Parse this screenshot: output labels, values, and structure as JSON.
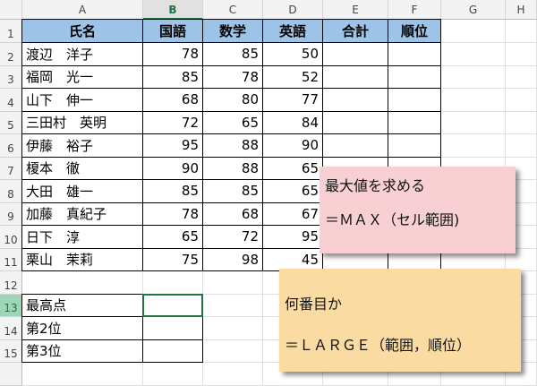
{
  "columns": [
    "A",
    "B",
    "C",
    "D",
    "E",
    "F",
    "G",
    "H"
  ],
  "selected_column": "B",
  "selected_row": "13",
  "selected_cell": "B13",
  "rows": [
    [
      "氏名",
      "国語",
      "数学",
      "英語",
      "合計",
      "順位"
    ],
    [
      "渡辺　洋子",
      "78",
      "85",
      "50",
      "",
      ""
    ],
    [
      "福岡　光一",
      "85",
      "78",
      "52",
      "",
      ""
    ],
    [
      "山下　伸一",
      "68",
      "80",
      "77",
      "",
      ""
    ],
    [
      "三田村　英明",
      "72",
      "65",
      "84",
      "",
      ""
    ],
    [
      "伊藤　裕子",
      "95",
      "88",
      "90",
      "",
      ""
    ],
    [
      "榎本　徹",
      "90",
      "88",
      "65",
      "",
      ""
    ],
    [
      "大田　雄一",
      "85",
      "85",
      "65",
      "",
      ""
    ],
    [
      "加藤　真紀子",
      "78",
      "68",
      "67",
      "",
      ""
    ],
    [
      "日下　淳",
      "65",
      "72",
      "95",
      "",
      ""
    ],
    [
      "栗山　茉莉",
      "75",
      "98",
      "45",
      "",
      ""
    ],
    [
      "",
      "",
      "",
      "",
      "",
      ""
    ],
    [
      "最高点",
      "",
      "",
      "",
      "",
      ""
    ],
    [
      "第2位",
      "",
      "",
      "",
      "",
      ""
    ],
    [
      "第3位",
      "",
      "",
      "",
      "",
      ""
    ]
  ],
  "notes": {
    "max": {
      "line1": "最大値を求める",
      "line2": "＝ＭＡＸ（セル範囲)",
      "color": "#f8cfd2"
    },
    "large": {
      "line1": "何番目か",
      "line2": "＝ＬＡＲＧＥ（範囲，順位）",
      "color": "#fadca2"
    }
  },
  "colors": {
    "header_fill": "#9dc3e6",
    "selection": "#217346"
  }
}
